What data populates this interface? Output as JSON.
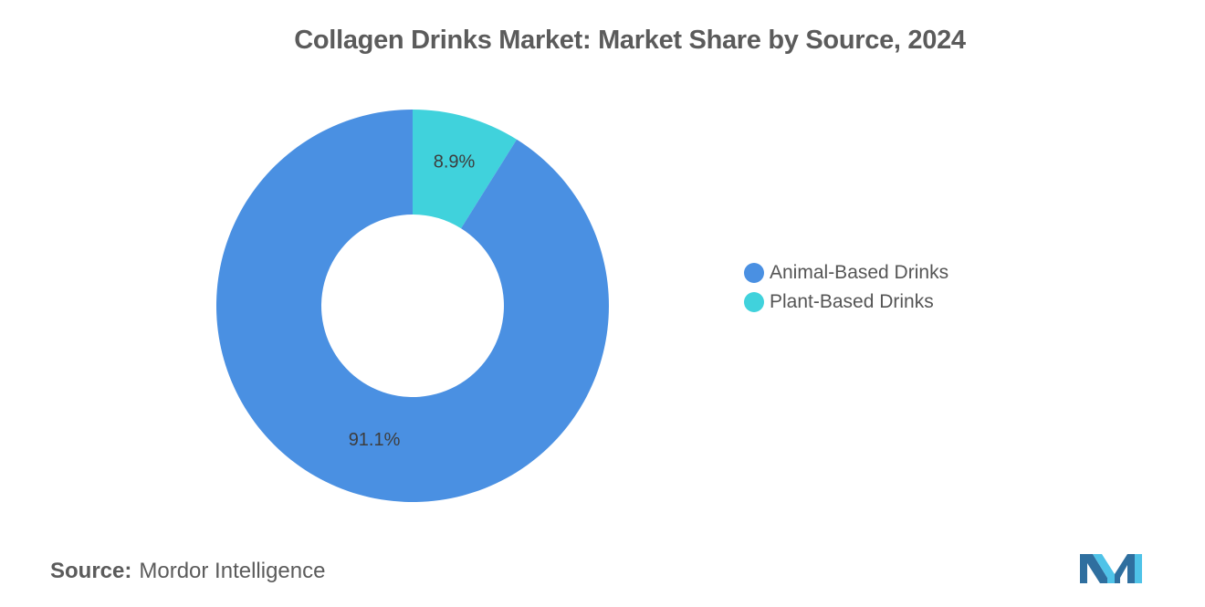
{
  "title": "Collagen Drinks Market: Market Share by Source, 2024",
  "footer": {
    "source_label": "Source:",
    "source_value": "Mordor Intelligence"
  },
  "logo_icon": "mordor-intelligence-logo-icon",
  "chart_data": {
    "type": "pie",
    "variant": "donut",
    "title": "Collagen Drinks Market: Market Share by Source, 2024",
    "legend_position": "right",
    "slices": [
      {
        "name": "Animal-Based Drinks",
        "value": 91.1,
        "label": "91.1%",
        "color": "#4a90e2"
      },
      {
        "name": "Plant-Based Drinks",
        "value": 8.9,
        "label": "8.9%",
        "color": "#40d2dc"
      }
    ]
  }
}
